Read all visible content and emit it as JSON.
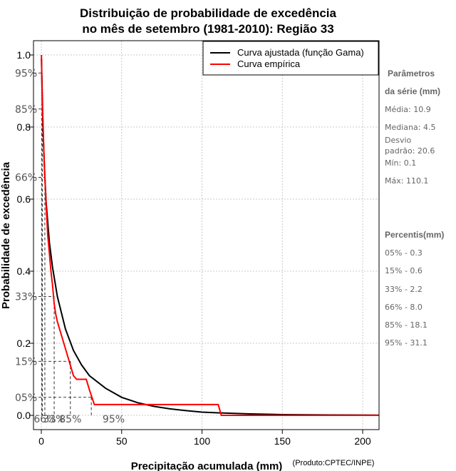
{
  "chart_data": {
    "type": "line",
    "title_line1": "Distribuição de probabilidade de excedência",
    "title_line2": "no mês de setembro (1981-2010): Região 33",
    "xlabel": "Precipitação acumulada (mm)",
    "ylabel": "Probabilidade de excedência",
    "credit": "(Produto:CPTEC/INPE)",
    "xlim": [
      0,
      210
    ],
    "ylim": [
      0,
      1.0
    ],
    "x_ticks": [
      0,
      50,
      100,
      150,
      200
    ],
    "y_ticks": [
      0.0,
      0.2,
      0.4,
      0.6,
      0.8,
      1.0
    ],
    "x_tick_labels": [
      "0",
      "50",
      "100",
      "150",
      "200"
    ],
    "y_tick_labels": [
      "0.0",
      "0.2",
      "0.4",
      "0.6",
      "0.8",
      "1.0"
    ],
    "grid": true,
    "legend_position": "top-right",
    "series": [
      {
        "name": "Curva ajustada (função Gama)",
        "color": "#000000",
        "x": [
          0.1,
          1,
          2,
          3,
          5,
          7,
          10,
          15,
          20,
          25,
          30,
          40,
          50,
          60,
          70,
          80,
          90,
          100,
          110,
          130,
          150,
          180,
          210
        ],
        "y": [
          0.99,
          0.8,
          0.68,
          0.59,
          0.48,
          0.41,
          0.33,
          0.24,
          0.18,
          0.14,
          0.11,
          0.075,
          0.05,
          0.035,
          0.025,
          0.018,
          0.013,
          0.009,
          0.007,
          0.004,
          0.002,
          0.001,
          0.0005
        ]
      },
      {
        "name": "Curva empírica",
        "color": "#ff0000",
        "x": [
          0.1,
          0.3,
          0.6,
          1,
          1.5,
          2.2,
          3,
          4,
          5,
          6,
          7,
          8,
          9,
          10,
          12,
          14,
          16,
          18,
          20,
          22,
          25,
          28,
          30,
          33,
          60,
          109,
          110.1,
          112,
          210
        ],
        "y": [
          1.0,
          0.93,
          0.86,
          0.82,
          0.74,
          0.66,
          0.58,
          0.5,
          0.45,
          0.4,
          0.36,
          0.31,
          0.28,
          0.26,
          0.23,
          0.2,
          0.17,
          0.14,
          0.11,
          0.1,
          0.1,
          0.1,
          0.07,
          0.03,
          0.03,
          0.03,
          0.03,
          0.0,
          0.0
        ]
      }
    ],
    "percentile_marks": [
      {
        "label": "05%",
        "prob": 0.05,
        "x_label": "",
        "value": 31.1
      },
      {
        "label": "15%",
        "prob": 0.15,
        "x_label": "",
        "value": 18.1
      },
      {
        "label": "33%",
        "prob": 0.33,
        "x_label": "",
        "value": 8.0
      },
      {
        "label": "66%",
        "prob": 0.66,
        "x_label": "",
        "value": 2.2
      },
      {
        "label": "85%",
        "prob": 0.85,
        "x_label": "",
        "value": 0.6
      },
      {
        "label": "95%",
        "prob": 0.95,
        "x_label": "",
        "value": 0.3
      }
    ],
    "bottom_pct_labels": [
      {
        "text": "66%",
        "x": 2.2
      },
      {
        "text": "33%",
        "x": 8.0
      },
      {
        "text": "85%",
        "x": 18.1
      },
      {
        "text": "95%",
        "x": 45
      }
    ]
  },
  "side_panel": {
    "params_title_1": "Parâmetros",
    "params_title_2": "da série (mm)",
    "media": "Média: 10.9",
    "mediana": "Mediana: 4.5",
    "desvio_1": "Desvio",
    "desvio_2": "padrão: 20.6",
    "min": "Mín: 0.1",
    "max": "Máx: 110.1",
    "percentis_title": "Percentis(mm)",
    "p05": "05% - 0.3",
    "p15": "15% - 0.6",
    "p33": "33% - 2.2",
    "p66": "66% - 8.0",
    "p85": "85% - 18.1",
    "p95": "95% - 31.1"
  }
}
